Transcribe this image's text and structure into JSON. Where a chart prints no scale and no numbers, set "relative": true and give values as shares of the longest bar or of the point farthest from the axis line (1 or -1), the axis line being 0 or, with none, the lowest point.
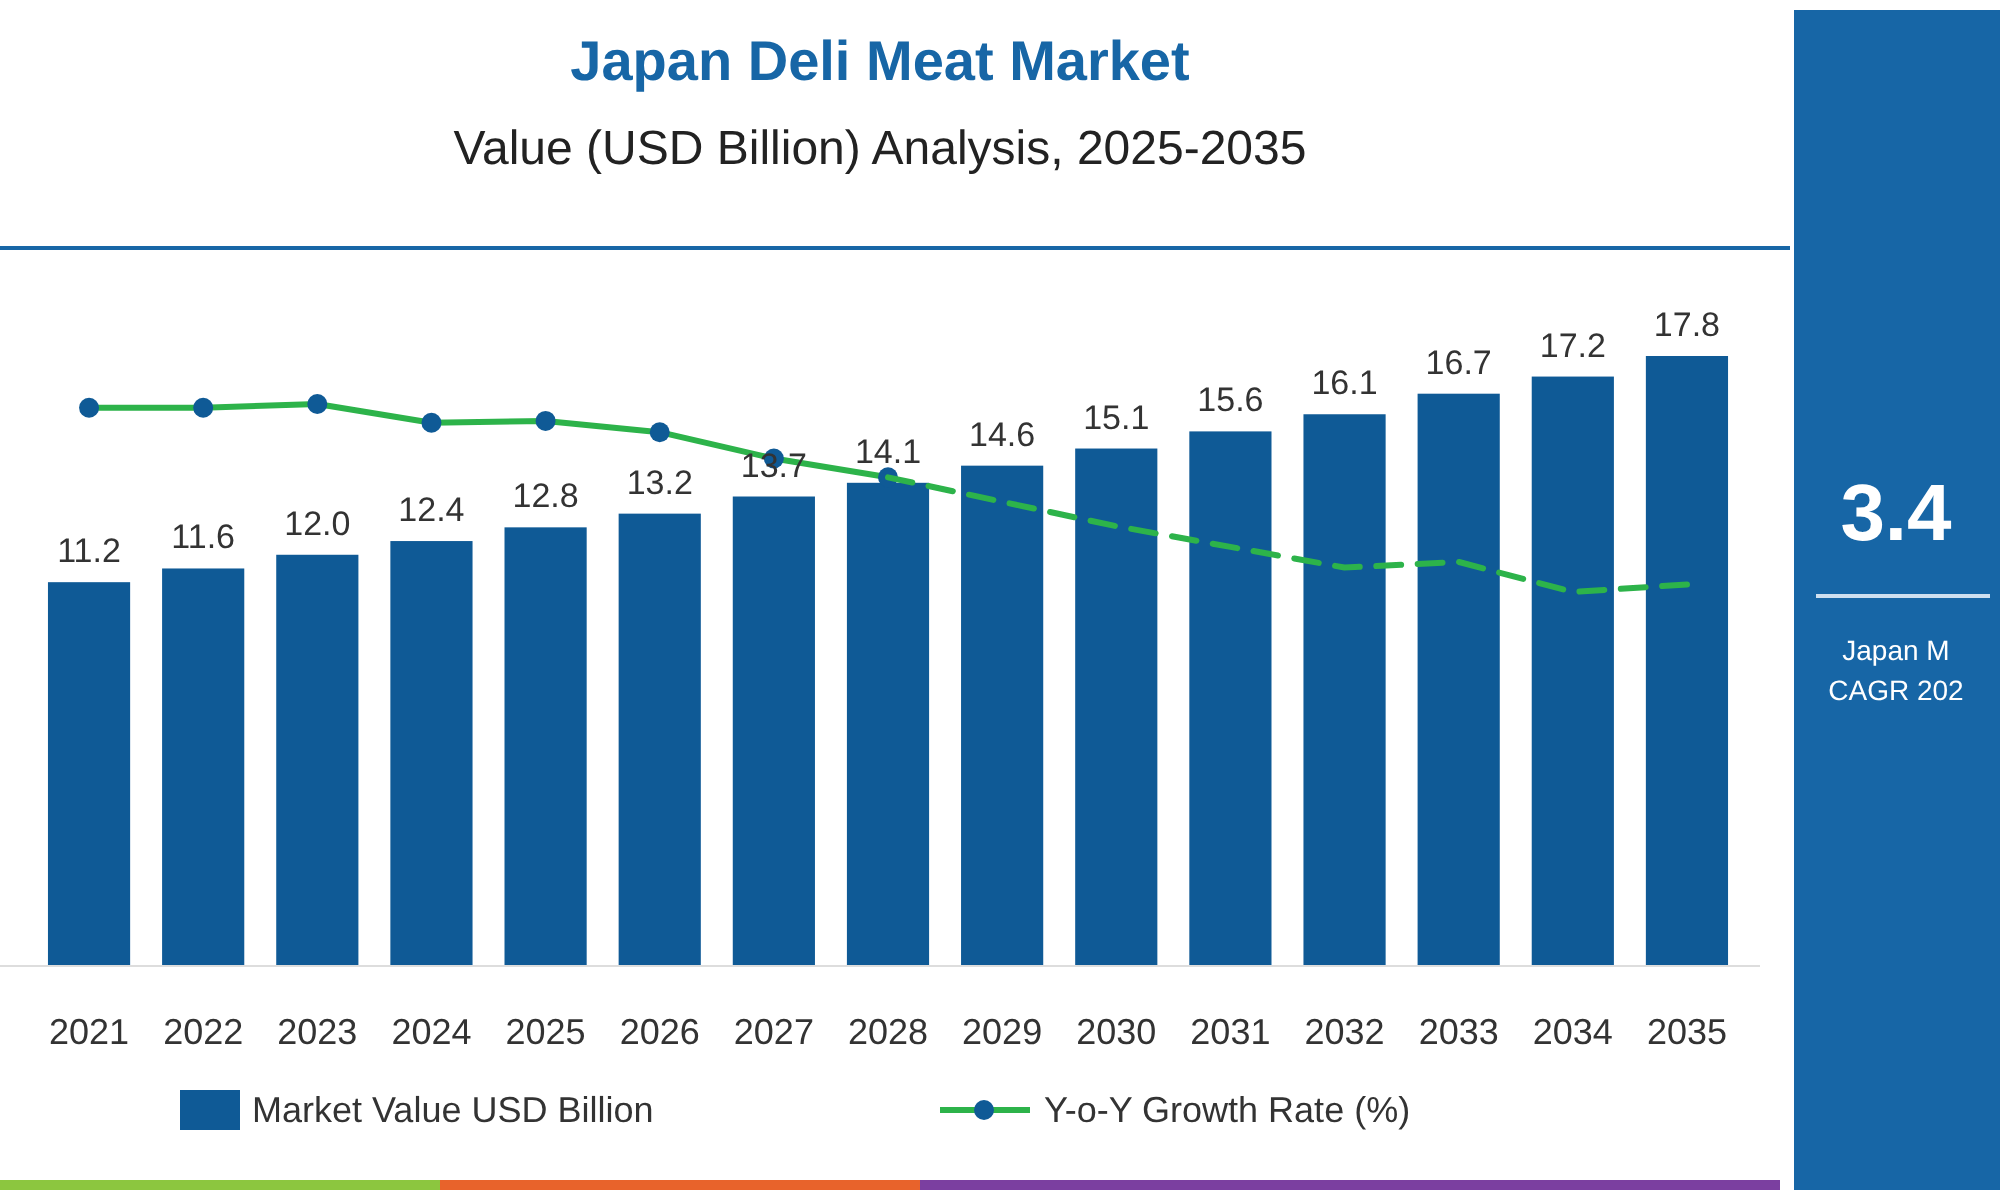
{
  "chart_data": [
    {
      "type": "bar",
      "title": "Japan Deli Meat Market",
      "subtitle": "Value (USD Billion) Analysis, 2025-2035",
      "categories": [
        "2021",
        "2022",
        "2023",
        "2024",
        "2025",
        "2026",
        "2027",
        "2028",
        "2029",
        "2030",
        "2031",
        "2032",
        "2033",
        "2034",
        "2035"
      ],
      "legend": "bottom",
      "series": [
        {
          "name": "Market Value USD Billion",
          "color": "#0f5a96",
          "values": [
            11.2,
            11.6,
            12.0,
            12.4,
            12.8,
            13.2,
            13.7,
            14.1,
            14.6,
            15.1,
            15.6,
            16.1,
            16.7,
            17.2,
            17.8
          ],
          "value_labels": [
            "11.2",
            "11.6",
            "12.0",
            "12.4",
            "12.8",
            "13.2",
            "13.7",
            "14.1",
            "14.6",
            "15.1",
            "15.6",
            "16.1",
            "16.7",
            "17.2",
            "17.8"
          ]
        }
      ]
    },
    {
      "type": "line",
      "relative": true,
      "legend": "bottom",
      "categories": [
        null,
        null,
        null,
        null,
        null,
        null,
        null,
        null,
        null,
        null,
        null,
        null,
        null,
        null,
        null
      ],
      "series": [
        {
          "name": "Y-o-Y Growth Rate (%)",
          "color": "#2db34a",
          "marker": "circle",
          "line_style": "solid",
          "values": [
            0.98,
            0.98,
            1,
            0.9,
            0.91,
            0.85,
            0.71,
            0.61,
            null,
            null,
            null,
            null,
            null,
            null,
            null
          ]
        },
        {
          "color": "#2db34a",
          "line_style": "dashed",
          "values": [
            null,
            null,
            null,
            null,
            null,
            null,
            null,
            0.61,
            0.48,
            0.35,
            0.24,
            0.13,
            0.16,
            0,
            0.04
          ]
        }
      ]
    },
    {
      "type": "other",
      "annotations": [
        "3.4",
        "Japan M",
        "CAGR 202"
      ]
    }
  ]
}
